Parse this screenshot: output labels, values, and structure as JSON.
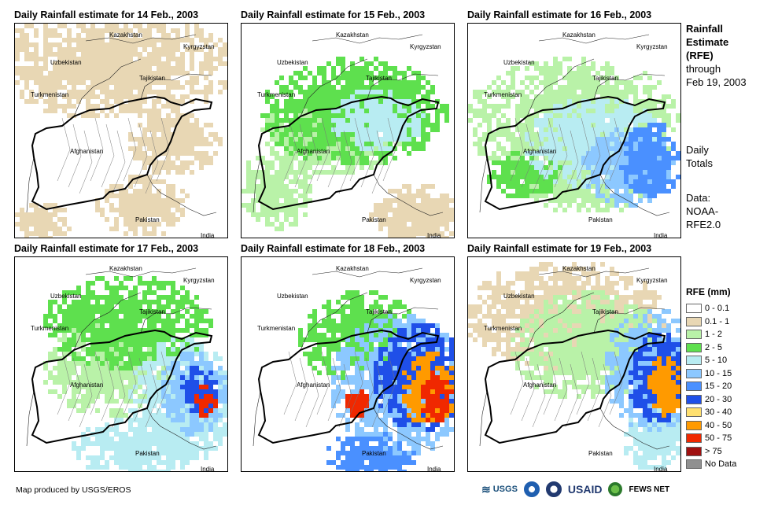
{
  "panels": [
    {
      "title": "Daily Rainfall estimate for 14 Feb., 2003"
    },
    {
      "title": "Daily Rainfall estimate for 15 Feb., 2003"
    },
    {
      "title": "Daily Rainfall estimate for 16 Feb., 2003"
    },
    {
      "title": "Daily Rainfall estimate for 17 Feb., 2003"
    },
    {
      "title": "Daily Rainfall estimate for 18 Feb., 2003"
    },
    {
      "title": "Daily Rainfall estimate for 19 Feb., 2003"
    }
  ],
  "countries": {
    "kazakhstan": "Kazakhstan",
    "kyrgyzstan": "Kyrgyzstan",
    "uzbekistan": "Uzbekistan",
    "tajikistan": "Tajikistan",
    "turkmenistan": "Turkmenistan",
    "afghanistan": "Afghanistan",
    "pakistan": "Pakistan",
    "india": "India"
  },
  "side": {
    "line1": "Rainfall",
    "line2": "Estimate",
    "line3": "(RFE)",
    "line4": "through",
    "line5": "Feb 19, 2003",
    "totals1": "Daily",
    "totals2": "Totals",
    "data1": "Data:",
    "data2": "NOAA-",
    "data3": "RFE2.0"
  },
  "legend": {
    "title": "RFE (mm)",
    "items": [
      {
        "label": "0 - 0.1",
        "color": "#ffffff"
      },
      {
        "label": "0.1 - 1",
        "color": "#e8d7b4"
      },
      {
        "label": "1 - 2",
        "color": "#b9f2a8"
      },
      {
        "label": "2 - 5",
        "color": "#5ee04e"
      },
      {
        "label": "5 - 10",
        "color": "#b8ecf2"
      },
      {
        "label": "10 - 15",
        "color": "#8cc8ff"
      },
      {
        "label": "15 - 20",
        "color": "#4a90ff"
      },
      {
        "label": "20 - 30",
        "color": "#1f4fe8"
      },
      {
        "label": "30 - 40",
        "color": "#ffe070"
      },
      {
        "label": "40 - 50",
        "color": "#ff9a00"
      },
      {
        "label": "50 - 75",
        "color": "#f02800"
      },
      {
        "label": "> 75",
        "color": "#a01010"
      },
      {
        "label": "No Data",
        "color": "#909090"
      }
    ]
  },
  "credit": "Map produced by USGS/EROS",
  "logos": {
    "usgs": "USGS",
    "usaid": "USAID",
    "fews": "FEWS NET"
  }
}
